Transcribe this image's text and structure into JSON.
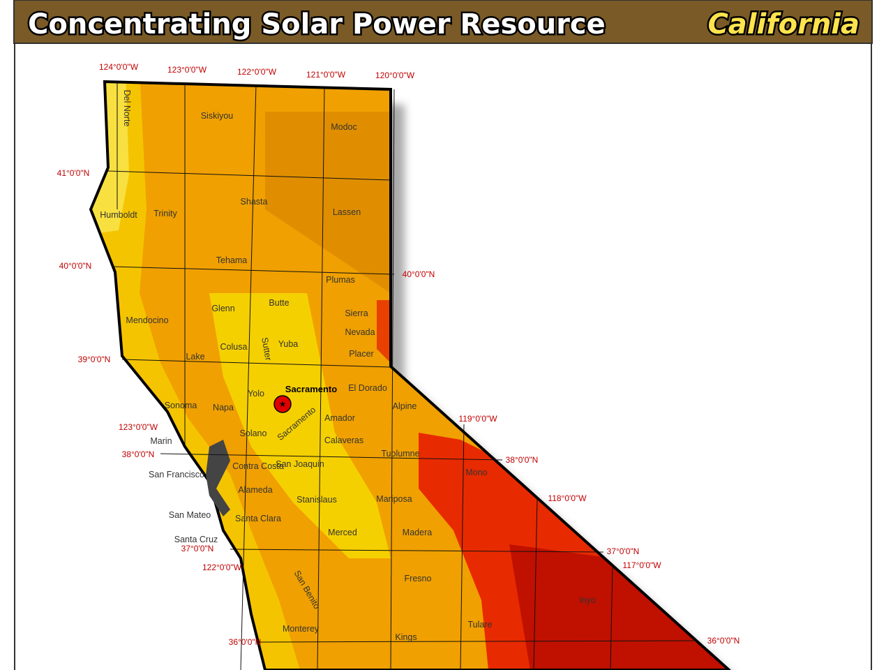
{
  "header": {
    "title": "Concentrating Solar Power Resource",
    "region": "California"
  },
  "map": {
    "grid_labels": [
      "124°0'0\"W",
      "123°0'0\"W",
      "122°0'0\"W",
      "121°0'0\"W",
      "120°0'0\"W",
      "41°0'0\"N",
      "40°0'0\"N",
      "39°0'0\"N",
      "123°0'0\"W",
      "38°0'0\"N",
      "37°0'0\"N",
      "122°0'0\"W",
      "36°0'0\"N",
      "40°0'0\"N",
      "119°0'0\"W",
      "38°0'0\"N",
      "118°0'0\"W",
      "37°0'0\"N",
      "117°0'0\"W",
      "36°0'0\"N"
    ],
    "place_labels": [
      "Del Norte",
      "Siskiyou",
      "Modoc",
      "Humboldt",
      "Trinity",
      "Shasta",
      "Lassen",
      "Tehama",
      "Plumas",
      "Mendocino",
      "Glenn",
      "Butte",
      "Sierra",
      "Nevada",
      "Colusa",
      "Yuba",
      "Sutter",
      "Placer",
      "Lake",
      "Yolo",
      "El Dorado",
      "Sonoma",
      "Napa",
      "Alpine",
      "Sacramento",
      "Amador",
      "Marin",
      "Solano",
      "Calaveras",
      "Tuolumne",
      "Contra Costa",
      "San Joaquin",
      "Mono",
      "San Francisco",
      "Alameda",
      "Stanislaus",
      "Mariposa",
      "San Mateo",
      "Santa Clara",
      "Merced",
      "Madera",
      "Santa Cruz",
      "Fresno",
      "San Benito",
      "Inyo",
      "Tulare",
      "Monterey",
      "Kings"
    ],
    "capital": "Sacramento"
  }
}
